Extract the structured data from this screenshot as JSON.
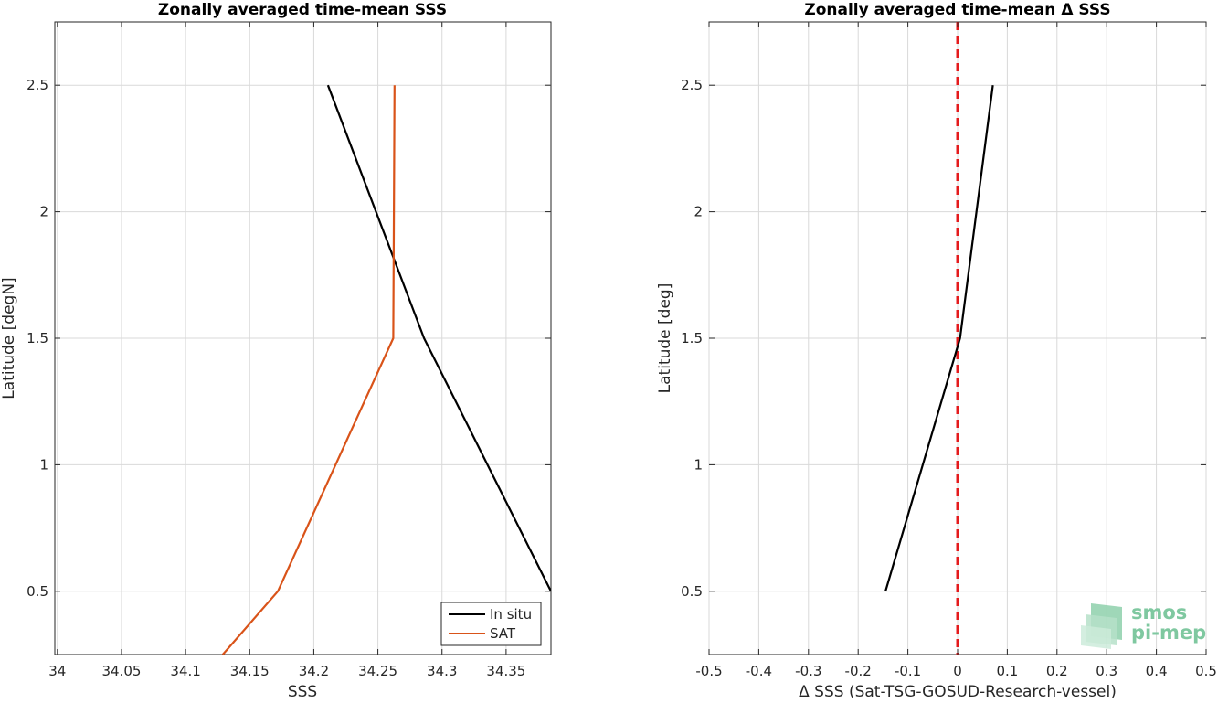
{
  "chart_data": [
    {
      "type": "line",
      "title": "Zonally averaged time-mean SSS",
      "xlabel": "SSS",
      "ylabel": "Latitude [degN]",
      "xlim": [
        33.998,
        34.385
      ],
      "ylim": [
        0.25,
        2.75
      ],
      "xticks": [
        34,
        34.05,
        34.1,
        34.15,
        34.2,
        34.25,
        34.3,
        34.35
      ],
      "xtick_labels": [
        "34",
        "34.05",
        "34.1",
        "34.15",
        "34.2",
        "34.25",
        "34.3",
        "34.35"
      ],
      "yticks": [
        0.5,
        1,
        1.5,
        2,
        2.5
      ],
      "ytick_labels": [
        "0.5",
        "1",
        "1.5",
        "2",
        "2.5"
      ],
      "grid": true,
      "legend_position": "bottom-right",
      "series": [
        {
          "name": "In situ",
          "color": "#000000",
          "x": [
            34.385,
            34.286,
            34.211
          ],
          "y": [
            0.5,
            1.5,
            2.5
          ]
        },
        {
          "name": "SAT",
          "color": "#d95319",
          "x": [
            34.129,
            34.172,
            34.262,
            34.263
          ],
          "y": [
            0.25,
            0.5,
            1.5,
            2.5
          ]
        }
      ]
    },
    {
      "type": "line",
      "title": "Zonally averaged time-mean Δ SSS",
      "xlabel": "Δ SSS (Sat-TSG-GOSUD-Research-vessel)",
      "ylabel": "Latitude [deg]",
      "xlim": [
        -0.5,
        0.5
      ],
      "ylim": [
        0.25,
        2.75
      ],
      "xticks": [
        -0.5,
        -0.4,
        -0.3,
        -0.2,
        -0.1,
        0,
        0.1,
        0.2,
        0.3,
        0.4,
        0.5
      ],
      "xtick_labels": [
        "-0.5",
        "-0.4",
        "-0.3",
        "-0.2",
        "-0.1",
        "0",
        "0.1",
        "0.2",
        "0.3",
        "0.4",
        "0.5"
      ],
      "yticks": [
        0.5,
        1,
        1.5,
        2,
        2.5
      ],
      "ytick_labels": [
        "0.5",
        "1",
        "1.5",
        "2",
        "2.5"
      ],
      "grid": true,
      "reference_line": {
        "x": 0,
        "color": "#e41a1c",
        "style": "dashed"
      },
      "series": [
        {
          "color": "#000000",
          "x": [
            -0.145,
            0.005,
            0.071
          ],
          "y": [
            0.5,
            1.5,
            2.5
          ]
        }
      ]
    }
  ],
  "logo": {
    "line1": "smos",
    "line2": "pi-mep",
    "color": "#7fc8a0"
  }
}
